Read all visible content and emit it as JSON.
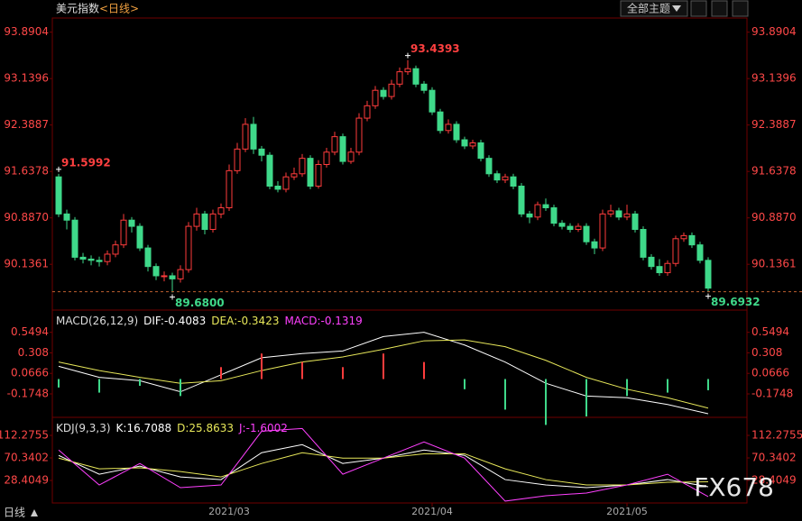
{
  "header": {
    "title": "美元指数",
    "period": "<日线>",
    "menu": "全部主题"
  },
  "footer_label": "日线",
  "watermark": "FX678",
  "chart_data": [
    {
      "type": "candlestick",
      "up_color": "#ff3c3c",
      "down_color": "#3fd98a",
      "xlim": [
        -0.78,
        84.78
      ],
      "ylim": [
        89.41,
        94.09
      ],
      "yticks": [
        93.8904,
        93.1396,
        92.3887,
        91.6378,
        {
          "value": 90.887,
          "label": "90.8870"
        },
        90.1361
      ],
      "ohlc": [
        [
          91.55,
          91.5992,
          90.9,
          90.95
        ],
        [
          90.95,
          91.02,
          90.7,
          90.85
        ],
        [
          90.85,
          90.9,
          90.2,
          90.25
        ],
        [
          90.25,
          90.32,
          90.15,
          90.22
        ],
        [
          90.22,
          90.28,
          90.12,
          90.2
        ],
        [
          90.2,
          90.26,
          90.1,
          90.18
        ],
        [
          90.18,
          90.36,
          90.12,
          90.3
        ],
        [
          90.3,
          90.52,
          90.25,
          90.45
        ],
        [
          90.45,
          90.95,
          90.4,
          90.85
        ],
        [
          90.85,
          90.9,
          90.65,
          90.75
        ],
        [
          90.75,
          90.8,
          90.35,
          90.4
        ],
        [
          90.4,
          90.45,
          90.02,
          90.1
        ],
        [
          90.1,
          90.15,
          89.88,
          89.95
        ],
        [
          89.95,
          90.02,
          89.86,
          89.95
        ],
        [
          89.95,
          90.0,
          89.68,
          89.9
        ],
        [
          89.9,
          90.12,
          89.84,
          90.05
        ],
        [
          90.05,
          90.82,
          90.0,
          90.75
        ],
        [
          90.75,
          91.05,
          90.68,
          90.95
        ],
        [
          90.95,
          91.0,
          90.62,
          90.7
        ],
        [
          90.7,
          91.02,
          90.65,
          90.95
        ],
        [
          90.95,
          91.12,
          90.88,
          91.05
        ],
        [
          91.05,
          91.75,
          91.0,
          91.65
        ],
        [
          91.65,
          92.1,
          91.6,
          92.0
        ],
        [
          92.0,
          92.5,
          91.95,
          92.4
        ],
        [
          92.4,
          92.52,
          91.92,
          92.0
        ],
        [
          92.0,
          92.05,
          91.8,
          91.9
        ],
        [
          91.9,
          91.95,
          91.35,
          91.4
        ],
        [
          91.4,
          91.48,
          91.3,
          91.35
        ],
        [
          91.35,
          91.62,
          91.3,
          91.55
        ],
        [
          91.55,
          91.7,
          91.5,
          91.6
        ],
        [
          91.6,
          91.92,
          91.55,
          91.85
        ],
        [
          91.85,
          91.9,
          91.35,
          91.4
        ],
        [
          91.4,
          91.82,
          91.36,
          91.75
        ],
        [
          91.75,
          92.02,
          91.7,
          91.95
        ],
        [
          91.95,
          92.28,
          91.9,
          92.2
        ],
        [
          92.2,
          92.25,
          91.75,
          91.8
        ],
        [
          91.8,
          92.02,
          91.76,
          91.95
        ],
        [
          91.95,
          92.58,
          91.9,
          92.5
        ],
        [
          92.5,
          92.78,
          92.45,
          92.7
        ],
        [
          92.7,
          93.02,
          92.65,
          92.95
        ],
        [
          92.95,
          93.0,
          92.8,
          92.85
        ],
        [
          92.85,
          93.12,
          92.8,
          93.05
        ],
        [
          93.05,
          93.32,
          93.0,
          93.25
        ],
        [
          93.25,
          93.4393,
          93.2,
          93.3
        ],
        [
          93.3,
          93.35,
          93.0,
          93.05
        ],
        [
          93.05,
          93.1,
          92.9,
          92.95
        ],
        [
          92.95,
          93.0,
          92.55,
          92.6
        ],
        [
          92.6,
          92.65,
          92.25,
          92.3
        ],
        [
          92.3,
          92.48,
          92.25,
          92.4
        ],
        [
          92.4,
          92.45,
          92.1,
          92.15
        ],
        [
          92.15,
          92.2,
          92.0,
          92.05
        ],
        [
          92.05,
          92.15,
          92.0,
          92.1
        ],
        [
          92.1,
          92.15,
          91.8,
          91.85
        ],
        [
          91.85,
          91.9,
          91.55,
          91.6
        ],
        [
          91.6,
          91.65,
          91.45,
          91.5
        ],
        [
          91.5,
          91.6,
          91.45,
          91.55
        ],
        [
          91.55,
          91.6,
          91.35,
          91.4
        ],
        [
          91.4,
          91.45,
          90.9,
          90.95
        ],
        [
          90.95,
          91.0,
          90.8,
          90.9
        ],
        [
          90.9,
          91.15,
          90.85,
          91.1
        ],
        [
          91.1,
          91.2,
          91.0,
          91.05
        ],
        [
          91.05,
          91.1,
          90.75,
          90.8
        ],
        [
          90.8,
          90.85,
          90.7,
          90.75
        ],
        [
          90.75,
          90.8,
          90.65,
          90.7
        ],
        [
          90.7,
          90.8,
          90.66,
          90.75
        ],
        [
          90.75,
          90.8,
          90.45,
          90.5
        ],
        [
          90.5,
          90.55,
          90.3,
          90.4
        ],
        [
          90.4,
          91.02,
          90.35,
          90.95
        ],
        [
          90.95,
          91.1,
          90.9,
          91.0
        ],
        [
          91.0,
          91.05,
          90.85,
          90.9
        ],
        [
          90.9,
          91.1,
          90.85,
          90.95
        ],
        [
          90.95,
          91.0,
          90.65,
          90.7
        ],
        [
          90.7,
          90.75,
          90.2,
          90.25
        ],
        [
          90.25,
          90.3,
          90.05,
          90.1
        ],
        [
          90.1,
          90.22,
          89.95,
          90.0
        ],
        [
          90.0,
          90.2,
          89.95,
          90.15
        ],
        [
          90.15,
          90.6,
          90.1,
          90.55
        ],
        [
          90.55,
          90.65,
          90.5,
          90.6
        ],
        [
          90.6,
          90.65,
          90.4,
          90.45
        ],
        [
          90.45,
          90.5,
          90.15,
          90.2
        ],
        [
          90.2,
          90.25,
          89.6932,
          89.75
        ]
      ],
      "annotations": [
        {
          "x": 0,
          "value": 91.5992,
          "color": "#ff4040"
        },
        {
          "x": 43,
          "value": 93.4393,
          "color": "#ff4040"
        },
        {
          "x": 14,
          "value": 89.68,
          "label": "89.6800",
          "color": "#3fd98a"
        },
        {
          "x": 80,
          "value": 89.6932,
          "color": "#3fd98a"
        }
      ]
    },
    {
      "type": "indicator",
      "title": "MACD(26,12,9)",
      "xlim": [
        -0.78,
        84.78
      ],
      "ylim": [
        -0.44,
        0.79
      ],
      "yticks": [
        0.5494,
        0.308,
        0.0666,
        -0.1748
      ],
      "tick_labels": [
        {
          "value": 0.308,
          "label": "0.3080"
        }
      ],
      "up_color": "#ff3c3c",
      "down_color": "#3fd98a",
      "x": [
        0,
        5,
        10,
        15,
        20,
        25,
        30,
        35,
        40,
        45,
        50,
        55,
        60,
        65,
        70,
        75,
        80
      ],
      "series": [
        {
          "name": "DIF:",
          "color": "#ffffff",
          "values": [
            0.15,
            0.02,
            -0.02,
            -0.15,
            0.05,
            0.25,
            0.3,
            0.33,
            0.5,
            0.55,
            0.4,
            0.2,
            -0.05,
            -0.2,
            -0.22,
            -0.3,
            -0.4083
          ]
        },
        {
          "name": "DEA:",
          "color": "#e8e85a",
          "values": [
            0.2,
            0.1,
            0.02,
            -0.05,
            -0.02,
            0.1,
            0.2,
            0.26,
            0.35,
            0.45,
            0.46,
            0.38,
            0.22,
            0.02,
            -0.12,
            -0.22,
            -0.3423
          ]
        },
        {
          "name": "MACD:",
          "color": "#ff40ff",
          "style": "histogram",
          "values": [
            -0.1,
            -0.16,
            -0.08,
            -0.2,
            0.14,
            0.3,
            0.2,
            0.14,
            0.3,
            0.2,
            -0.12,
            -0.36,
            -0.54,
            -0.44,
            -0.2,
            -0.16,
            -0.1319
          ]
        }
      ]
    },
    {
      "type": "indicator",
      "title": "KDJ(9,3,3)",
      "xlim": [
        -0.78,
        84.78
      ],
      "ylim": [
        -13.5,
        142.5
      ],
      "yticks": [
        112.2755,
        70.3402,
        28.4049
      ],
      "x": [
        0,
        5,
        10,
        15,
        20,
        25,
        30,
        35,
        40,
        45,
        50,
        55,
        60,
        65,
        70,
        75,
        80
      ],
      "xticks": [
        {
          "value": 21,
          "label": "2021/03"
        },
        {
          "value": 46,
          "label": "2021/04"
        },
        {
          "value": 70,
          "label": "2021/05"
        }
      ],
      "series": [
        {
          "name": "K:",
          "color": "#ffffff",
          "values": [
            75,
            40,
            55,
            35,
            30,
            80,
            95,
            60,
            70,
            85,
            75,
            30,
            20,
            15,
            20,
            30,
            16.7088
          ]
        },
        {
          "name": "D:",
          "color": "#e8e85a",
          "values": [
            70,
            50,
            52,
            45,
            35,
            60,
            80,
            70,
            70,
            78,
            78,
            50,
            30,
            20,
            20,
            25,
            25.8633
          ]
        },
        {
          "name": "J:",
          "color": "#ff40ff",
          "values": [
            85,
            20,
            60,
            15,
            20,
            120,
            125,
            40,
            70,
            100,
            70,
            -10,
            0,
            5,
            20,
            40,
            -1.6002
          ]
        }
      ]
    }
  ]
}
